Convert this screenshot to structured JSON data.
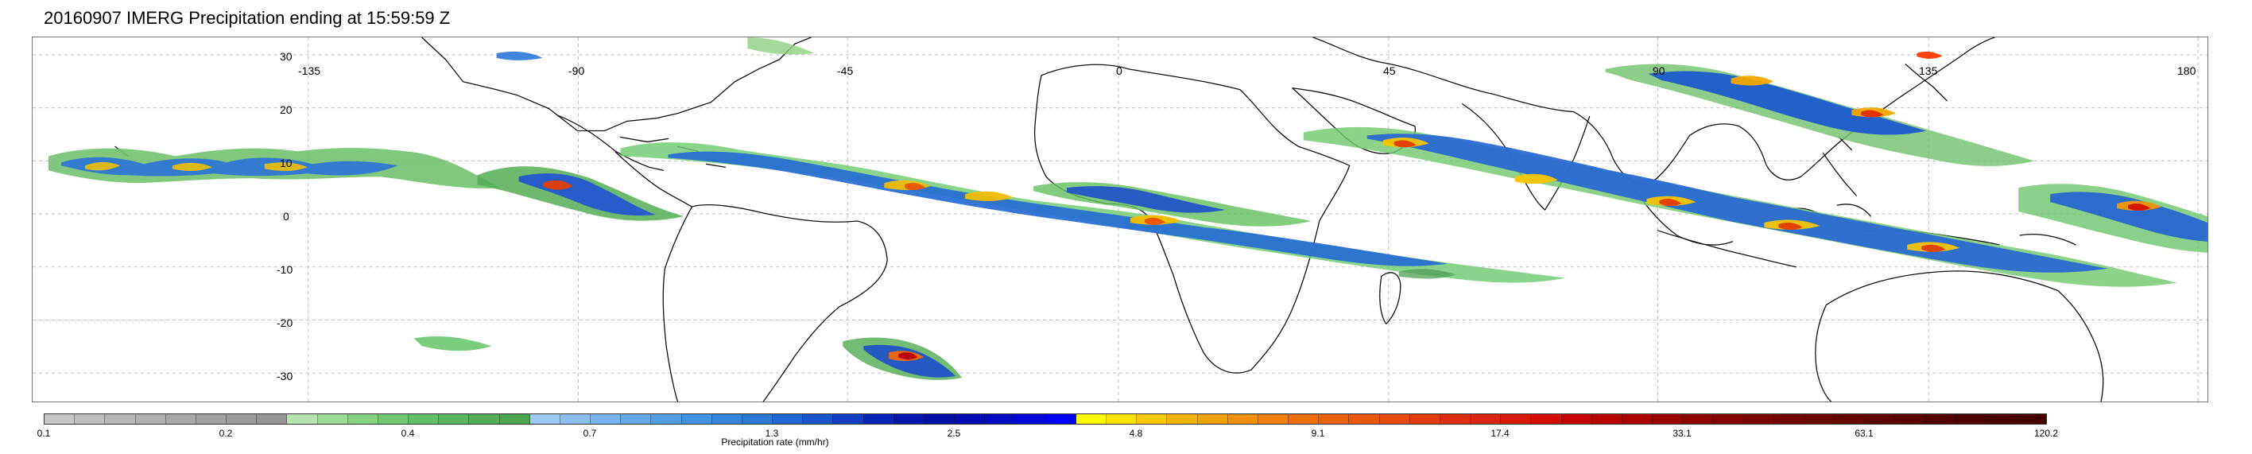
{
  "title": "20160907 IMERG Precipitation ending at 15:59:59 Z",
  "map": {
    "lon_ticks": [
      "-135",
      "-90",
      "-45",
      "0",
      "45",
      "90",
      "135",
      "180"
    ],
    "lat_ticks": [
      "30",
      "20",
      "10",
      "0",
      "-10",
      "-20",
      "-30"
    ],
    "background_color": "#ffffff",
    "gridline_color": "#bdbdbd",
    "coastline_color": "#111111"
  },
  "colorbar": {
    "title": "Precipitation rate (mm/hr)",
    "labels": [
      "0.1",
      "0.2",
      "0.4",
      "0.7",
      "1.3",
      "2.5",
      "4.8",
      "9.1",
      "17.4",
      "33.1",
      "63.1",
      "120.2"
    ],
    "segment_colors": [
      "#c7c7c7",
      "#bebebe",
      "#b7b7b7",
      "#b0b0b0",
      "#a8a8a8",
      "#a1a1a1",
      "#9b9b9b",
      "#959595",
      "#b7e3b2",
      "#9fdb98",
      "#86d282",
      "#73c96f",
      "#62bf66",
      "#59b65d",
      "#53ad55",
      "#4da54f",
      "#9fc9f5",
      "#8abef2",
      "#77b4ef",
      "#64a9ec",
      "#529de8",
      "#4191e2",
      "#3385db",
      "#2c79d5",
      "#2068d1",
      "#1754ca",
      "#0f3dc1",
      "#0a24b8",
      "#0616b0",
      "#000fa8",
      "#000cb1",
      "#000bc3",
      "#0007d8",
      "#0000ff",
      "#ffff00",
      "#fde400",
      "#fbc900",
      "#f9b300",
      "#f6a200",
      "#f48f00",
      "#f27f00",
      "#ef6e00",
      "#ed6200",
      "#ea5800",
      "#e64b00",
      "#e33c00",
      "#df2f00",
      "#dc2400",
      "#d81a00",
      "#d40f00",
      "#c80000",
      "#b80000",
      "#aa0000",
      "#9b0000",
      "#8f0000",
      "#840000",
      "#7b0000",
      "#720000",
      "#6b0000",
      "#650000",
      "#5f0000",
      "#5a0000",
      "#550000",
      "#4f0000",
      "#4a0000",
      "#450000"
    ]
  }
}
